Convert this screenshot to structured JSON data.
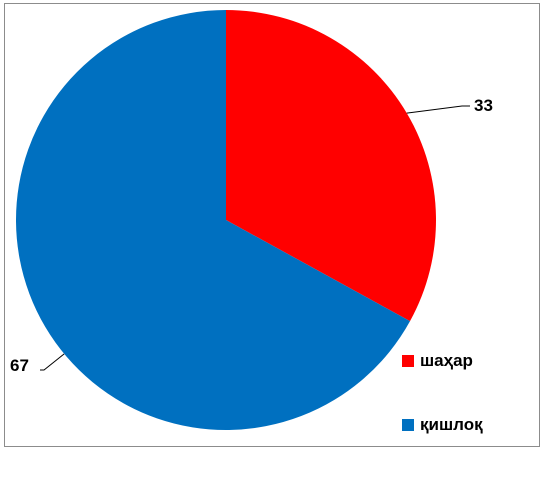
{
  "chart_data": {
    "type": "pie",
    "categories": [
      "шаҳар",
      "қишлоқ"
    ],
    "values": [
      33,
      67
    ],
    "colors": [
      "#ff0000",
      "#0070c0"
    ],
    "data_labels": [
      "33",
      "67"
    ],
    "legend_position": "bottom-right",
    "start_angle": "12 o'clock, clockwise"
  }
}
